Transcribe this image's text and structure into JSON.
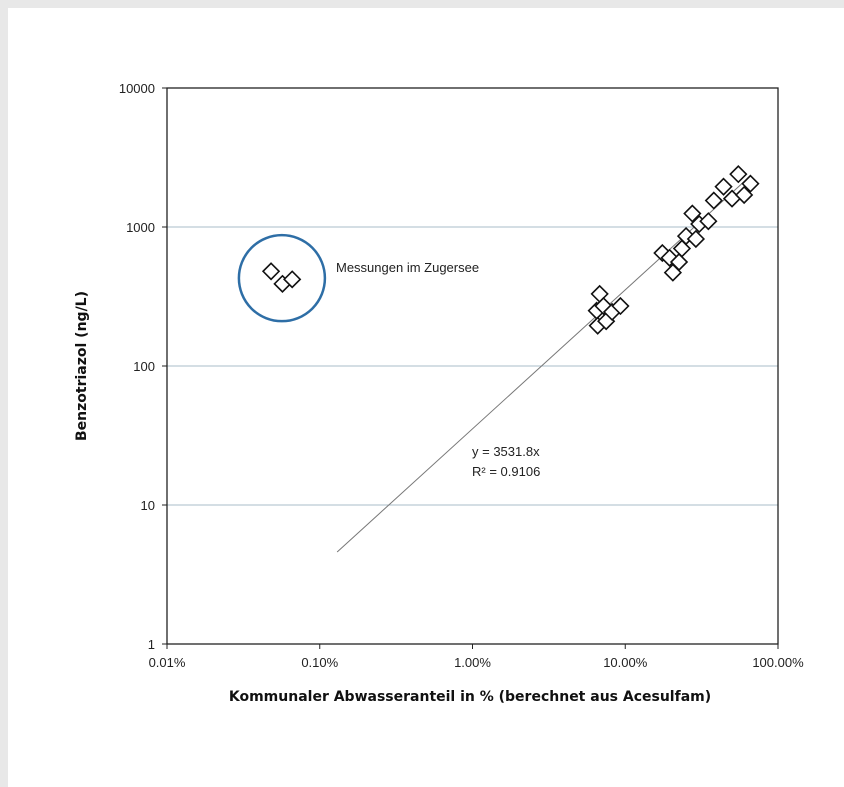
{
  "chart_data": {
    "type": "scatter",
    "xscale": "log",
    "yscale": "log",
    "xlim": [
      0.01,
      100
    ],
    "ylim": [
      1,
      10000
    ],
    "x_ticks": [
      0.01,
      0.1,
      1,
      10,
      100
    ],
    "x_tick_labels": [
      "0.01%",
      "0.10%",
      "1.00%",
      "10.00%",
      "100.00%"
    ],
    "y_ticks": [
      1,
      10,
      100,
      1000,
      10000
    ],
    "y_tick_labels": [
      "1",
      "10",
      "100",
      "1000",
      "10000"
    ],
    "xlabel": "Kommunaler Abwasseranteil in % (berechnet aus Acesulfam)",
    "ylabel": "Benzotriazol (ng/L)",
    "grid": "horizontal",
    "marker": "diamond",
    "points": [
      {
        "x": 0.048,
        "y": 480
      },
      {
        "x": 0.057,
        "y": 390
      },
      {
        "x": 0.066,
        "y": 420
      },
      {
        "x": 6.8,
        "y": 330
      },
      {
        "x": 6.5,
        "y": 250
      },
      {
        "x": 6.6,
        "y": 195
      },
      {
        "x": 7.2,
        "y": 270
      },
      {
        "x": 7.5,
        "y": 210
      },
      {
        "x": 8.2,
        "y": 245
      },
      {
        "x": 9.3,
        "y": 270
      },
      {
        "x": 17.5,
        "y": 650
      },
      {
        "x": 19.5,
        "y": 600
      },
      {
        "x": 20.5,
        "y": 470
      },
      {
        "x": 22.5,
        "y": 560
      },
      {
        "x": 23.5,
        "y": 700
      },
      {
        "x": 25.0,
        "y": 860
      },
      {
        "x": 27.5,
        "y": 1250
      },
      {
        "x": 29.0,
        "y": 820
      },
      {
        "x": 30.5,
        "y": 1050
      },
      {
        "x": 35.0,
        "y": 1100
      },
      {
        "x": 38.0,
        "y": 1550
      },
      {
        "x": 44.0,
        "y": 1950
      },
      {
        "x": 50.0,
        "y": 1600
      },
      {
        "x": 55.0,
        "y": 2400
      },
      {
        "x": 60.0,
        "y": 1700
      },
      {
        "x": 66.0,
        "y": 2050
      }
    ],
    "trendline": {
      "slope": 3531.8,
      "x_range": [
        0.13,
        60
      ]
    },
    "annotations": {
      "equation": "y = 3531.8x",
      "r_squared": "R² = 0.9106",
      "cluster_label": "Messungen im Zugersee"
    },
    "colors": {
      "circle": "#2e6ea6",
      "grid": "#a9bcc9",
      "trendline": "#777777",
      "marker": "#111111"
    }
  }
}
